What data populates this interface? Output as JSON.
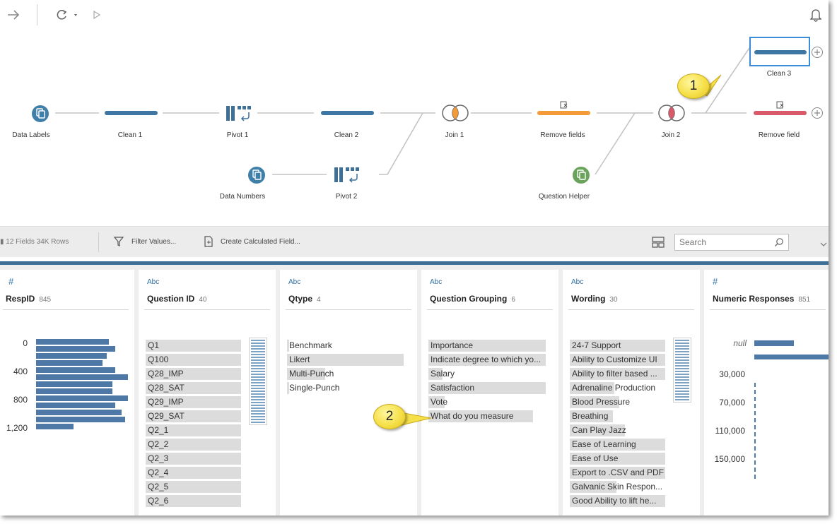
{
  "flow": {
    "nodes": {
      "data_labels": "Data Labels",
      "clean1": "Clean 1",
      "pivot1": "Pivot 1",
      "clean2": "Clean 2",
      "join1": "Join 1",
      "remove_fields": "Remove fields",
      "join2": "Join 2",
      "clean3": "Clean 3",
      "remove_field": "Remove field",
      "data_numbers": "Data Numbers",
      "pivot2": "Pivot 2",
      "question_helper": "Question Helper"
    },
    "callouts": {
      "one": "1",
      "two": "2"
    },
    "colors": {
      "clean": "#3d76a3",
      "remove_orange": "#f29b37",
      "remove_pink": "#d8596a",
      "input_blue": "#3f7fa8",
      "input_green": "#6aa35b",
      "selected_border": "#3b8bd6"
    }
  },
  "toolbar": {
    "stats": "12 Fields  34K Rows",
    "filter_values": "Filter Values...",
    "create_calc": "Create Calculated Field...",
    "search_placeholder": "Search"
  },
  "cards": [
    {
      "type": "#",
      "title": "RespID",
      "count": "845",
      "axis": [
        "0",
        "400",
        "800",
        "1,200"
      ],
      "histogram": [
        0.79,
        0.86,
        0.77,
        0.72,
        0.86,
        1.0,
        0.83,
        0.83,
        1.0,
        0.86,
        0.93,
        0.97,
        0.41
      ]
    },
    {
      "type": "Abc",
      "title": "Question ID",
      "count": "40",
      "values": [
        "Q1",
        "Q100",
        "Q28_IMP",
        "Q28_SAT",
        "Q29_IMP",
        "Q29_SAT",
        "Q2_1",
        "Q2_2",
        "Q2_3",
        "Q2_4",
        "Q2_5",
        "Q2_6"
      ]
    },
    {
      "type": "Abc",
      "title": "Qtype",
      "count": "4",
      "values": [
        "Benchmark",
        "Likert",
        "Multi-Punch",
        "Single-Punch"
      ],
      "fill": [
        0.02,
        1.0,
        0.33,
        0.02
      ]
    },
    {
      "type": "Abc",
      "title": "Question Grouping",
      "count": "6",
      "values": [
        "Importance",
        "Indicate degree to which yo...",
        "Salary",
        "Satisfaction",
        "Vote",
        "What do you measure"
      ],
      "fill": [
        1.0,
        1.0,
        0.12,
        1.0,
        0.14,
        0.89
      ]
    },
    {
      "type": "Abc",
      "title": "Wording",
      "count": "30",
      "values": [
        "24-7 Support",
        "Ability to Customize UI",
        "Ability to filter based ...",
        "Adrenaline Production",
        "Blood Pressure",
        "Breathing",
        "Can Play Jazz",
        "Ease of Learning",
        "Ease of Use",
        "Export to .CSV and PDF",
        "Galvanic Skin Respon...",
        "Good Ability to lift he..."
      ],
      "fill": [
        1.0,
        1.0,
        1.0,
        0.47,
        0.52,
        0.45,
        0.58,
        1.0,
        1.0,
        1.0,
        0.49,
        1.0
      ]
    },
    {
      "type": "#",
      "title": "Numeric Responses",
      "count": "851",
      "axis": [
        "null",
        "30,000",
        "70,000",
        "110,000",
        "150,000"
      ],
      "null_fraction": 0.52,
      "top_bin_fraction": 1.0
    }
  ]
}
